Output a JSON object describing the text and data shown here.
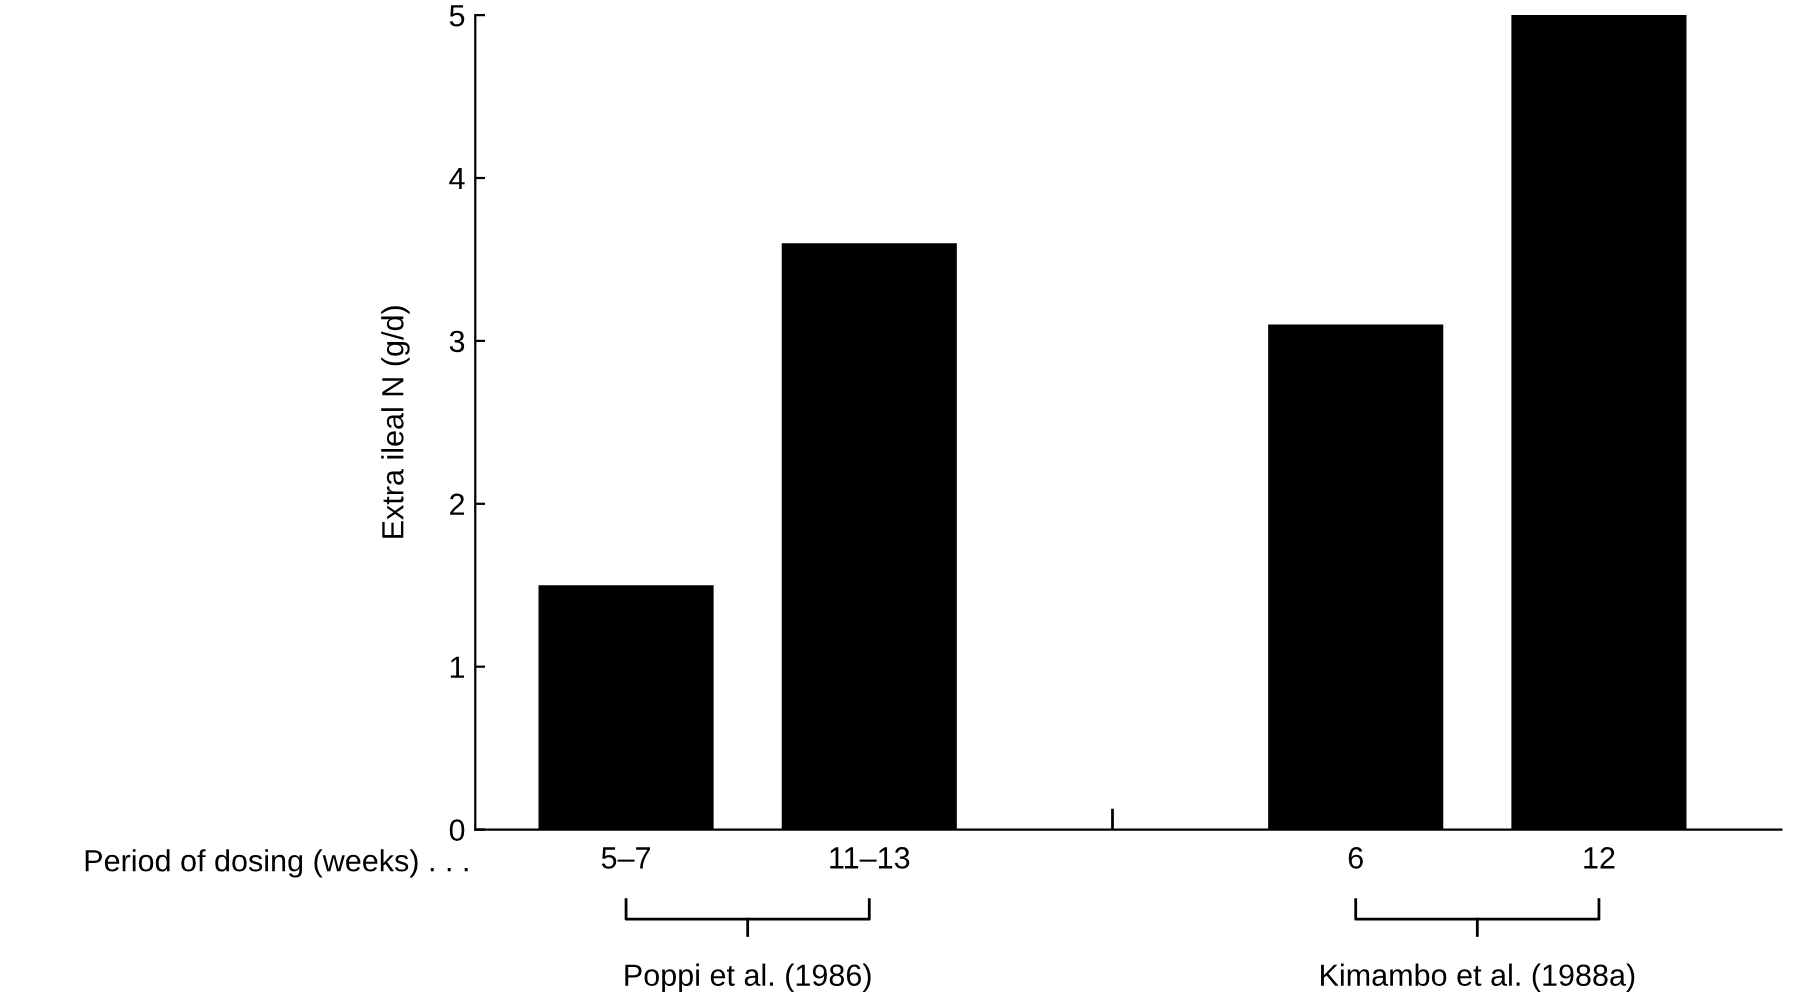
{
  "chart_data": {
    "type": "bar",
    "ylabel": "Extra ileal N (g/d)",
    "xlabel": "Period of dosing (weeks) . . .",
    "categories": [
      "5–7",
      "11–13",
      null,
      "6",
      "12"
    ],
    "values": [
      1.5,
      3.6,
      null,
      3.1,
      5.0
    ],
    "color": "#000000",
    "ylim": [
      0,
      5
    ],
    "yticks": [
      0,
      1,
      2,
      3,
      4,
      5
    ],
    "grid": false,
    "annotations": [
      "Poppi et al. (1986)",
      "Kimambo et al. (1988a)"
    ]
  }
}
